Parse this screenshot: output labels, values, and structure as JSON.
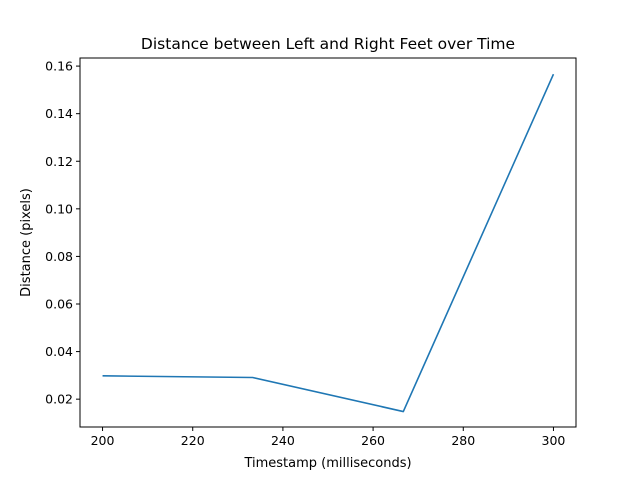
{
  "chart_data": {
    "type": "line",
    "title": "Distance between Left and Right Feet over Time",
    "xlabel": "Timestamp (milliseconds)",
    "ylabel": "Distance (pixels)",
    "xlim": [
      195,
      305
    ],
    "ylim": [
      0.0083,
      0.1634
    ],
    "x_ticks": [
      200,
      220,
      240,
      260,
      280,
      300
    ],
    "y_ticks": [
      0.02,
      0.04,
      0.06,
      0.08,
      0.1,
      0.12,
      0.14,
      0.16
    ],
    "y_tick_labels": [
      "0.02",
      "0.04",
      "0.06",
      "0.08",
      "0.10",
      "0.12",
      "0.14",
      "0.16"
    ],
    "grid": false,
    "series": [
      {
        "color": "#1f77b4",
        "x": [
          200,
          233.3,
          266.7,
          300
        ],
        "y": [
          0.0298,
          0.0291,
          0.0148,
          0.1566
        ]
      }
    ]
  }
}
